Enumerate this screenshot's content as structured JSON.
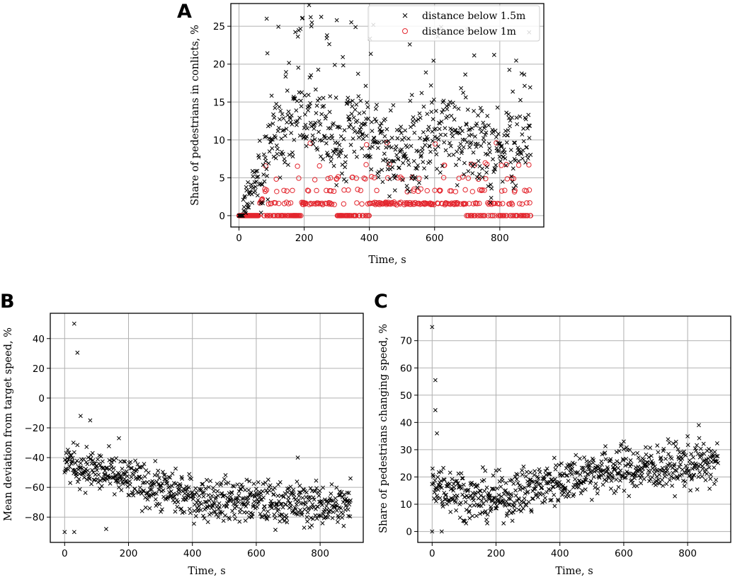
{
  "chart_data": [
    {
      "panel": "A",
      "type": "scatter",
      "xlabel": "Time, s",
      "ylabel": "Share of pedestrians in conlicts, %",
      "xlim": [
        -25,
        935
      ],
      "ylim": [
        -1.5,
        28
      ],
      "xticks": [
        0,
        200,
        400,
        600,
        800
      ],
      "yticks": [
        0,
        5,
        10,
        15,
        20,
        25
      ],
      "grid": true,
      "legend_position": "top-right",
      "series": [
        {
          "name": "distance below 1.5m",
          "marker": "x",
          "color": "#000000",
          "description": "x-marker scatter from t=0 to 895 s: 0 at start, rising to 5-15% by t~100 s, with upper outliers near 20-28% around t=80-300 s; a dense band of ~7-13% with occasional values near 17-22% around t=400-900 s",
          "highlights": [
            [
              85,
              26.0
            ],
            [
              215,
              27.8
            ],
            [
              220,
              26.2
            ],
            [
              222,
              25.0
            ],
            [
              270,
              23.8
            ],
            [
              300,
              25.8
            ],
            [
              890,
              24.2
            ]
          ]
        },
        {
          "name": "distance below 1m",
          "marker": "o",
          "color": "#e3262e",
          "description": "circle-marker scatter arranged in quantized horizontal bands near 0, 1.6, 3.3, 5 and 6.7% with sparse values up to ~9-10%",
          "bands": [
            0,
            1.6,
            3.3,
            5.0,
            6.7,
            9.3
          ]
        }
      ]
    },
    {
      "panel": "B",
      "type": "scatter",
      "xlabel": "Time, s",
      "ylabel": "Mean deviation from target speed, %",
      "xlim": [
        -45,
        935
      ],
      "ylim": [
        -97,
        57
      ],
      "xticks": [
        0,
        200,
        400,
        600,
        800
      ],
      "yticks": [
        -80,
        -60,
        -40,
        -20,
        0,
        20,
        40
      ],
      "grid": true,
      "series": [
        {
          "name": "mean deviation",
          "marker": "x",
          "color": "#000000",
          "description": "x-marker scatter trending from around -40% at t~10 s down to about -70 to -75% for t>400 s, spread roughly +/-10%",
          "highlights": [
            [
              30,
              50
            ],
            [
              40,
              30.5
            ],
            [
              50,
              -12
            ],
            [
              80,
              -15
            ],
            [
              0,
              -90
            ],
            [
              30,
              -90
            ],
            [
              130,
              -88
            ],
            [
              170,
              -27
            ],
            [
              730,
              -40
            ],
            [
              895,
              -54
            ]
          ]
        }
      ]
    },
    {
      "panel": "C",
      "type": "scatter",
      "xlabel": "Time, s",
      "ylabel": "Share of pedestrians changing speed, %",
      "xlim": [
        -45,
        935
      ],
      "ylim": [
        -4,
        79
      ],
      "xticks": [
        0,
        200,
        400,
        600,
        800
      ],
      "yticks": [
        0,
        10,
        20,
        30,
        40,
        50,
        60,
        70
      ],
      "grid": true,
      "series": [
        {
          "name": "share changing speed",
          "marker": "x",
          "color": "#000000",
          "description": "x-marker scatter: large early values (75, 55, 44) near t=0-15 s, dip to about 10-15% around t=100-200 s, then gradual rise to about 20-30% for t>500 s",
          "highlights": [
            [
              0,
              75
            ],
            [
              10,
              55.5
            ],
            [
              10,
              44.5
            ],
            [
              15,
              36
            ],
            [
              0,
              0
            ],
            [
              30,
              0
            ],
            [
              835,
              39
            ],
            [
              600,
              33
            ]
          ]
        }
      ]
    }
  ],
  "panels": {
    "a": {
      "letter": "A",
      "xlabel": "Time, s",
      "ylabel": "Share of pedestrians in conlicts, %",
      "legend": [
        "distance below 1.5m",
        "distance below 1m"
      ]
    },
    "b": {
      "letter": "B",
      "xlabel": "Time, s",
      "ylabel": "Mean deviation from target speed, %"
    },
    "c": {
      "letter": "C",
      "xlabel": "Time, s",
      "ylabel": "Share of pedestrians changing speed, %"
    }
  },
  "tick_labels": {
    "x": [
      "0",
      "200",
      "400",
      "600",
      "800"
    ],
    "a_y": [
      "0",
      "5",
      "10",
      "15",
      "20",
      "25"
    ],
    "b_y": [
      "−80",
      "−60",
      "−40",
      "−20",
      "0",
      "20",
      "40"
    ],
    "c_y": [
      "0",
      "10",
      "20",
      "30",
      "40",
      "50",
      "60",
      "70"
    ]
  },
  "colors": {
    "series1": "#000000",
    "series2": "#e3262e",
    "grid": "#b0b0b0"
  }
}
